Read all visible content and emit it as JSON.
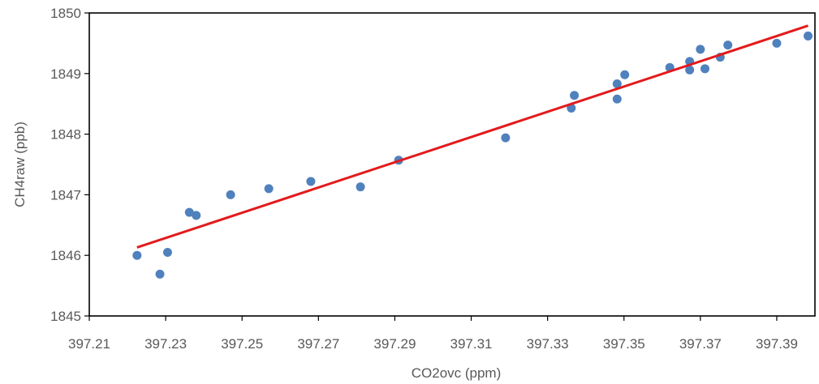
{
  "chart_data": {
    "type": "scatter",
    "xlabel": "CO2ovc (ppm)",
    "ylabel": "CH4raw (ppb)",
    "xlim": [
      397.21,
      397.4
    ],
    "ylim": [
      1845,
      1850
    ],
    "x_ticks": [
      "397.21",
      "397.23",
      "397.25",
      "397.27",
      "397.29",
      "397.31",
      "397.33",
      "397.35",
      "397.37",
      "397.39"
    ],
    "x_tick_values": [
      397.21,
      397.23,
      397.25,
      397.27,
      397.29,
      397.31,
      397.33,
      397.35,
      397.37,
      397.39
    ],
    "y_ticks": [
      "1845",
      "1846",
      "1847",
      "1848",
      "1849",
      "1850"
    ],
    "y_tick_values": [
      1845,
      1846,
      1847,
      1848,
      1849,
      1850
    ],
    "grid": false,
    "legend": "none",
    "series": [
      {
        "color": "#4f81bd",
        "points": [
          [
            397.2225,
            1846.0
          ],
          [
            397.2285,
            1845.69
          ],
          [
            397.2305,
            1846.05
          ],
          [
            397.2362,
            1846.71
          ],
          [
            397.238,
            1846.66
          ],
          [
            397.247,
            1847.0
          ],
          [
            397.257,
            1847.1
          ],
          [
            397.268,
            1847.22
          ],
          [
            397.281,
            1847.13
          ],
          [
            397.291,
            1847.57
          ],
          [
            397.319,
            1847.94
          ],
          [
            397.3362,
            1848.43
          ],
          [
            397.337,
            1848.64
          ],
          [
            397.3482,
            1848.83
          ],
          [
            397.3482,
            1848.58
          ],
          [
            397.3502,
            1848.98
          ],
          [
            397.362,
            1849.1
          ],
          [
            397.3672,
            1849.2
          ],
          [
            397.3672,
            1849.06
          ],
          [
            397.37,
            1849.4
          ],
          [
            397.3712,
            1849.08
          ],
          [
            397.3752,
            1849.27
          ],
          [
            397.3772,
            1849.47
          ],
          [
            397.39,
            1849.5
          ],
          [
            397.3982,
            1849.62
          ]
        ]
      }
    ],
    "trendline": {
      "color": "#e31a1c",
      "x": [
        397.2225,
        397.3982
      ],
      "y": [
        1846.13,
        1849.79
      ]
    }
  }
}
